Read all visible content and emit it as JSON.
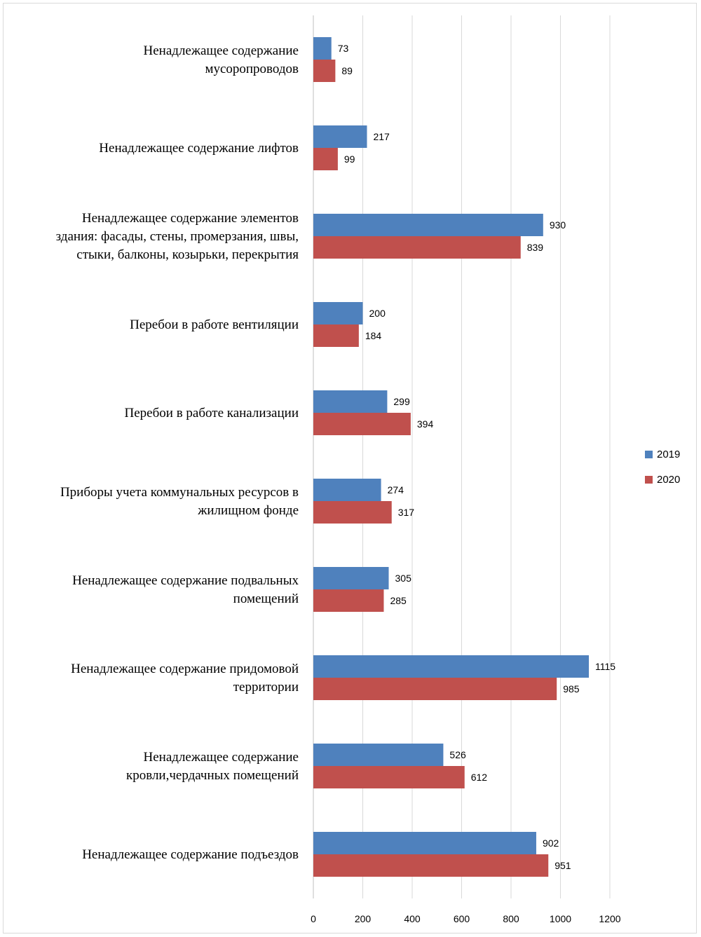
{
  "chart_data": {
    "type": "bar",
    "orientation": "horizontal",
    "categories": [
      [
        "Ненадлежащее содержание",
        "мусоропроводов"
      ],
      [
        "Ненадлежащее содержание лифтов"
      ],
      [
        "Ненадлежащее содержание  элементов",
        "здания: фасады, стены, промерзания, швы,",
        "стыки,  балконы, козырьки, перекрытия"
      ],
      [
        "Перебои в работе вентиляции"
      ],
      [
        "Перебои в работе канализации"
      ],
      [
        "Приборы учета коммунальных ресурсов в",
        "жилищном  фонде"
      ],
      [
        "Ненадлежащее содержание подвальных",
        "помещений"
      ],
      [
        "Ненадлежащее содержание придомовой",
        "территории"
      ],
      [
        "Ненадлежащее содержание",
        "кровли,чердачных помещений"
      ],
      [
        "Ненадлежащее содержание подъездов"
      ]
    ],
    "series": [
      {
        "name": "2019",
        "color": "#4f81bd",
        "values": [
          73,
          217,
          930,
          200,
          299,
          274,
          305,
          1115,
          526,
          902
        ]
      },
      {
        "name": "2020",
        "color": "#c0504d",
        "values": [
          89,
          99,
          839,
          184,
          394,
          317,
          285,
          985,
          612,
          951
        ]
      }
    ],
    "xlim": [
      0,
      1200
    ],
    "xticks": [
      0,
      200,
      400,
      600,
      800,
      1000,
      1200
    ],
    "grid": true,
    "legend_position": "right",
    "title": "",
    "xlabel": "",
    "ylabel": ""
  }
}
